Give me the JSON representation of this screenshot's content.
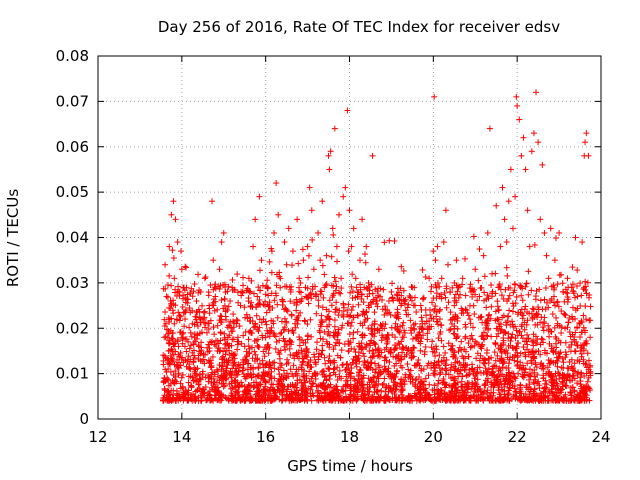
{
  "chart_data": {
    "type": "scatter",
    "title": "Day 256 of 2016, Rate Of TEC Index for receiver edsv",
    "xlabel": "GPS time / hours",
    "ylabel": "ROTI / TECUs",
    "xlim": [
      12,
      24
    ],
    "ylim": [
      0,
      0.08
    ],
    "xticks": [
      12,
      14,
      16,
      18,
      20,
      22,
      24
    ],
    "xtick_labels": [
      "12",
      "14",
      "16",
      "18",
      "20",
      "22",
      "24"
    ],
    "yticks": [
      0,
      0.01,
      0.02,
      0.03,
      0.04,
      0.05,
      0.06,
      0.07,
      0.08
    ],
    "ytick_labels": [
      "0",
      "0.01",
      "0.02",
      "0.03",
      "0.04",
      "0.05",
      "0.06",
      "0.07",
      "0.08"
    ],
    "grid": true,
    "marker": "+",
    "color": "#ff0000",
    "x_range_of_data": [
      13.55,
      23.75
    ],
    "series": [
      {
        "name": "ROTI",
        "points": [
          [
            13.56,
            0.012
          ],
          [
            13.58,
            0.018
          ],
          [
            13.6,
            0.034
          ],
          [
            13.62,
            0.021
          ],
          [
            13.65,
            0.009
          ],
          [
            13.68,
            0.015
          ],
          [
            13.7,
            0.038
          ],
          [
            13.73,
            0.026
          ],
          [
            13.75,
            0.045
          ],
          [
            13.78,
            0.013
          ],
          [
            13.8,
            0.048
          ],
          [
            13.82,
            0.031
          ],
          [
            13.85,
            0.044
          ],
          [
            13.88,
            0.022
          ],
          [
            13.9,
            0.039
          ],
          [
            13.92,
            0.016
          ],
          [
            13.95,
            0.028
          ],
          [
            13.98,
            0.037
          ],
          [
            14.0,
            0.033
          ],
          [
            14.03,
            0.019
          ],
          [
            14.05,
            0.029
          ],
          [
            14.1,
            0.024
          ],
          [
            14.15,
            0.017
          ],
          [
            14.2,
            0.011
          ],
          [
            14.25,
            0.021
          ],
          [
            14.3,
            0.018
          ],
          [
            14.35,
            0.026
          ],
          [
            14.4,
            0.014
          ],
          [
            14.45,
            0.028
          ],
          [
            14.5,
            0.022
          ],
          [
            14.55,
            0.031
          ],
          [
            14.6,
            0.019
          ],
          [
            14.65,
            0.025
          ],
          [
            14.72,
            0.048
          ],
          [
            14.75,
            0.035
          ],
          [
            14.8,
            0.027
          ],
          [
            14.85,
            0.015
          ],
          [
            14.9,
            0.033
          ],
          [
            14.95,
            0.039
          ],
          [
            15.0,
            0.041
          ],
          [
            15.05,
            0.024
          ],
          [
            15.1,
            0.018
          ],
          [
            15.15,
            0.026
          ],
          [
            15.2,
            0.029
          ],
          [
            15.25,
            0.014
          ],
          [
            15.3,
            0.021
          ],
          [
            15.35,
            0.017
          ],
          [
            15.4,
            0.025
          ],
          [
            15.45,
            0.028
          ],
          [
            15.5,
            0.016
          ],
          [
            15.55,
            0.023
          ],
          [
            15.6,
            0.031
          ],
          [
            15.65,
            0.019
          ],
          [
            15.7,
            0.038
          ],
          [
            15.75,
            0.044
          ],
          [
            15.8,
            0.027
          ],
          [
            15.85,
            0.049
          ],
          [
            15.9,
            0.035
          ],
          [
            15.95,
            0.022
          ],
          [
            16.0,
            0.018
          ],
          [
            16.05,
            0.029
          ],
          [
            16.1,
            0.024
          ],
          [
            16.15,
            0.037
          ],
          [
            16.2,
            0.041
          ],
          [
            16.25,
            0.052
          ],
          [
            16.3,
            0.045
          ],
          [
            16.35,
            0.031
          ],
          [
            16.4,
            0.026
          ],
          [
            16.45,
            0.039
          ],
          [
            16.5,
            0.034
          ],
          [
            16.55,
            0.042
          ],
          [
            16.6,
            0.028
          ],
          [
            16.65,
            0.037
          ],
          [
            16.7,
            0.021
          ],
          [
            16.75,
            0.044
          ],
          [
            16.8,
            0.031
          ],
          [
            16.85,
            0.026
          ],
          [
            16.9,
            0.035
          ],
          [
            16.95,
            0.029
          ],
          [
            17.0,
            0.038
          ],
          [
            17.05,
            0.051
          ],
          [
            17.1,
            0.046
          ],
          [
            17.15,
            0.033
          ],
          [
            17.2,
            0.027
          ],
          [
            17.25,
            0.041
          ],
          [
            17.3,
            0.035
          ],
          [
            17.35,
            0.048
          ],
          [
            17.4,
            0.029
          ],
          [
            17.45,
            0.036
          ],
          [
            17.5,
            0.058
          ],
          [
            17.52,
            0.055
          ],
          [
            17.55,
            0.059
          ],
          [
            17.6,
            0.042
          ],
          [
            17.65,
            0.064
          ],
          [
            17.7,
            0.038
          ],
          [
            17.75,
            0.045
          ],
          [
            17.8,
            0.031
          ],
          [
            17.85,
            0.049
          ],
          [
            17.9,
            0.051
          ],
          [
            17.95,
            0.068
          ],
          [
            18.0,
            0.046
          ],
          [
            18.05,
            0.038
          ],
          [
            18.1,
            0.042
          ],
          [
            18.15,
            0.031
          ],
          [
            18.2,
            0.027
          ],
          [
            18.25,
            0.035
          ],
          [
            18.3,
            0.044
          ],
          [
            18.35,
            0.029
          ],
          [
            18.4,
            0.038
          ],
          [
            18.45,
            0.025
          ],
          [
            18.55,
            0.058
          ],
          [
            18.6,
            0.021
          ],
          [
            18.65,
            0.026
          ],
          [
            18.7,
            0.033
          ],
          [
            18.8,
            0.018
          ],
          [
            18.9,
            0.024
          ],
          [
            19.0,
            0.028
          ],
          [
            19.1,
            0.021
          ],
          [
            19.2,
            0.019
          ],
          [
            19.3,
            0.026
          ],
          [
            19.4,
            0.023
          ],
          [
            19.5,
            0.029
          ],
          [
            19.6,
            0.018
          ],
          [
            19.7,
            0.025
          ],
          [
            19.8,
            0.021
          ],
          [
            19.9,
            0.031
          ],
          [
            20.0,
            0.037
          ],
          [
            20.02,
            0.071
          ],
          [
            20.05,
            0.035
          ],
          [
            20.1,
            0.038
          ],
          [
            20.15,
            0.027
          ],
          [
            20.2,
            0.031
          ],
          [
            20.25,
            0.039
          ],
          [
            20.3,
            0.046
          ],
          [
            20.35,
            0.034
          ],
          [
            20.4,
            0.028
          ],
          [
            20.45,
            0.022
          ],
          [
            20.5,
            0.025
          ],
          [
            20.55,
            0.035
          ],
          [
            20.6,
            0.029
          ],
          [
            20.7,
            0.031
          ],
          [
            20.8,
            0.024
          ],
          [
            20.9,
            0.028
          ],
          [
            21.0,
            0.033
          ],
          [
            21.1,
            0.027
          ],
          [
            21.2,
            0.036
          ],
          [
            21.3,
            0.041
          ],
          [
            21.35,
            0.064
          ],
          [
            21.4,
            0.032
          ],
          [
            21.5,
            0.047
          ],
          [
            21.55,
            0.029
          ],
          [
            21.6,
            0.038
          ],
          [
            21.65,
            0.051
          ],
          [
            21.7,
            0.044
          ],
          [
            21.75,
            0.039
          ],
          [
            21.8,
            0.048
          ],
          [
            21.85,
            0.055
          ],
          [
            21.9,
            0.042
          ],
          [
            21.95,
            0.049
          ],
          [
            21.98,
            0.071
          ],
          [
            22.0,
            0.069
          ],
          [
            22.05,
            0.066
          ],
          [
            22.1,
            0.058
          ],
          [
            22.15,
            0.062
          ],
          [
            22.2,
            0.055
          ],
          [
            22.25,
            0.046
          ],
          [
            22.3,
            0.038
          ],
          [
            22.35,
            0.059
          ],
          [
            22.4,
            0.063
          ],
          [
            22.45,
            0.072
          ],
          [
            22.5,
            0.061
          ],
          [
            22.55,
            0.044
          ],
          [
            22.6,
            0.056
          ],
          [
            22.65,
            0.041
          ],
          [
            22.7,
            0.036
          ],
          [
            22.75,
            0.031
          ],
          [
            22.8,
            0.042
          ],
          [
            22.9,
            0.035
          ],
          [
            23.0,
            0.041
          ],
          [
            23.1,
            0.028
          ],
          [
            23.2,
            0.031
          ],
          [
            23.3,
            0.029
          ],
          [
            23.4,
            0.024
          ],
          [
            23.5,
            0.021
          ],
          [
            23.55,
            0.039
          ],
          [
            23.6,
            0.058
          ],
          [
            23.62,
            0.061
          ],
          [
            23.65,
            0.063
          ],
          [
            23.7,
            0.058
          ],
          [
            23.74,
            0.018
          ]
        ]
      }
    ]
  }
}
